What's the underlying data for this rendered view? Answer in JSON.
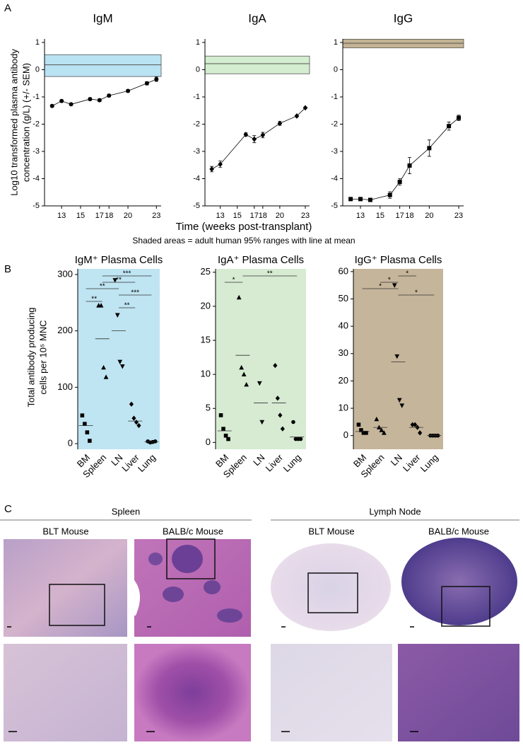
{
  "panel_labels": [
    "A",
    "B",
    "C"
  ],
  "chart_data": [
    {
      "type": "line",
      "title": "IgM",
      "marker": "circle",
      "color": "#000000",
      "ylabel": [
        "Log10 transformed plasma antibody",
        "concentration (g/L) (+/- SEM)"
      ],
      "x": [
        12,
        13,
        14,
        16,
        17,
        18,
        20,
        22,
        23
      ],
      "values": [
        -1.33,
        -1.15,
        -1.27,
        -1.08,
        -1.12,
        -0.95,
        -0.78,
        -0.5,
        -0.35
      ],
      "errors": [
        0.04,
        0.04,
        0.04,
        0.05,
        0.05,
        0.05,
        0.05,
        0.06,
        0.08
      ],
      "band": {
        "low": -0.25,
        "mean": 0.18,
        "high": 0.55,
        "color": "#b9e2f2"
      },
      "xlim": [
        11.2,
        23.5
      ],
      "xticks": [
        13,
        15,
        17,
        18,
        20,
        23
      ],
      "ylim": [
        -5,
        1.13
      ],
      "yticks": [
        -5,
        -4,
        -3,
        -2,
        -1,
        0,
        1
      ]
    },
    {
      "type": "line",
      "title": "IgA",
      "marker": "diamond",
      "color": "#000000",
      "xlabel": "Time (weeks post-transplant)",
      "note": "Shaded areas = adult human 95% ranges with line at mean",
      "x": [
        12,
        13,
        16,
        17,
        18,
        20,
        22,
        23
      ],
      "values": [
        -3.65,
        -3.47,
        -2.38,
        -2.55,
        -2.4,
        -1.97,
        -1.7,
        -1.4
      ],
      "errors": [
        0.1,
        0.12,
        0.06,
        0.13,
        0.1,
        0.07,
        0.03,
        0.03
      ],
      "band": {
        "low": -0.15,
        "mean": 0.22,
        "high": 0.5,
        "color": "#d4ecd0"
      },
      "xlim": [
        11.2,
        23.5
      ],
      "xticks": [
        13,
        15,
        17,
        18,
        20,
        23
      ],
      "ylim": [
        -5,
        1.13
      ],
      "yticks": [
        -5,
        -4,
        -3,
        -2,
        -1,
        0,
        1
      ]
    },
    {
      "type": "line",
      "title": "IgG",
      "marker": "square",
      "color": "#000000",
      "x": [
        12,
        13,
        14,
        16,
        17,
        18,
        20,
        22,
        23
      ],
      "values": [
        -4.75,
        -4.75,
        -4.78,
        -4.6,
        -4.12,
        -3.52,
        -2.88,
        -2.07,
        -1.77
      ],
      "errors": [
        0.05,
        0.05,
        0.05,
        0.12,
        0.12,
        0.3,
        0.3,
        0.15,
        0.1
      ],
      "band": {
        "low": 0.8,
        "mean": 0.97,
        "high": 1.12,
        "color": "#c4b394"
      },
      "xlim": [
        11.2,
        23.5
      ],
      "xticks": [
        13,
        15,
        17,
        18,
        20,
        23
      ],
      "ylim": [
        -5,
        1.13
      ],
      "yticks": [
        -5,
        -4,
        -3,
        -2,
        -1,
        0,
        1
      ]
    },
    {
      "type": "strip",
      "title": "IgM⁺ Plasma Cells",
      "background": "#bfe4f2",
      "ylabel": [
        "Total antibody producing",
        "cells per 10⁵ MNC"
      ],
      "categories": [
        "BM",
        "Spleen",
        "LN",
        "Liver",
        "Lung"
      ],
      "groups": [
        {
          "marker": "square",
          "values": [
            50,
            35,
            20,
            5
          ],
          "median": 32
        },
        {
          "marker": "triangle-up",
          "values": [
            245,
            245,
            135,
            118
          ],
          "median": 186
        },
        {
          "marker": "triangle-down",
          "values": [
            290,
            228,
            145,
            137
          ],
          "median": 200
        },
        {
          "marker": "diamond",
          "values": [
            70,
            45,
            38,
            32
          ],
          "median": 40
        },
        {
          "marker": "circle",
          "values": [
            4,
            2,
            3,
            4
          ],
          "median": 3
        }
      ],
      "brackets": [
        {
          "pair": [
            1,
            4
          ],
          "label": "***"
        },
        {
          "pair": [
            1,
            3
          ],
          "label": "**"
        },
        {
          "pair": [
            0,
            2
          ],
          "label": "**"
        },
        {
          "pair": [
            2,
            4
          ],
          "label": "***"
        },
        {
          "pair": [
            0,
            1
          ],
          "label": "**"
        },
        {
          "pair": [
            2,
            3
          ],
          "label": "**"
        }
      ],
      "ylim": [
        -10,
        310
      ],
      "yticks": [
        0,
        100,
        200,
        300
      ]
    },
    {
      "type": "strip",
      "title": "IgA⁺ Plasma Cells",
      "background": "#d6ebd2",
      "categories": [
        "BM",
        "Spleen",
        "LN",
        "Liver",
        "Lung"
      ],
      "groups": [
        {
          "marker": "square",
          "values": [
            4,
            2,
            1,
            0.5
          ],
          "median": 1.7
        },
        {
          "marker": "triangle-up",
          "values": [
            21.3,
            11,
            10,
            8.5
          ],
          "median": 12.8
        },
        {
          "marker": "triangle-down",
          "values": [
            8.7,
            3
          ],
          "median": 5.8
        },
        {
          "marker": "diamond",
          "values": [
            11.3,
            6.5,
            4,
            2
          ],
          "median": 5.8
        },
        {
          "marker": "circle",
          "values": [
            3,
            0.5,
            0.5,
            0.5
          ],
          "median": 0.8
        }
      ],
      "brackets": [
        {
          "pair": [
            1,
            4
          ],
          "label": "**"
        },
        {
          "pair": [
            0,
            1
          ],
          "label": "*"
        }
      ],
      "ylim": [
        -1,
        25.5
      ],
      "yticks": [
        0,
        5,
        10,
        15,
        20,
        25
      ]
    },
    {
      "type": "strip",
      "title": "IgG⁺ Plasma Cells",
      "background": "#c5b59a",
      "categories": [
        "BM",
        "Spleen",
        "LN",
        "Liver",
        "Lung"
      ],
      "groups": [
        {
          "marker": "square",
          "values": [
            4,
            2,
            1,
            1
          ],
          "median": 1.5
        },
        {
          "marker": "triangle-up",
          "values": [
            6,
            3,
            2,
            1
          ],
          "median": 3
        },
        {
          "marker": "triangle-down",
          "values": [
            55,
            29,
            13,
            11
          ],
          "median": 27
        },
        {
          "marker": "diamond",
          "values": [
            4,
            4,
            3,
            1
          ],
          "median": 3
        },
        {
          "marker": "circle",
          "values": [
            0,
            0,
            0,
            0
          ],
          "median": 0
        }
      ],
      "brackets": [
        {
          "pair": [
            2,
            3
          ],
          "label": "*"
        },
        {
          "pair": [
            1,
            2
          ],
          "label": "*"
        },
        {
          "pair": [
            0,
            2
          ],
          "label": "*"
        },
        {
          "pair": [
            2,
            4
          ],
          "label": "*"
        }
      ],
      "ylim": [
        -5,
        61
      ],
      "yticks": [
        0,
        10,
        20,
        30,
        40,
        50,
        60
      ]
    }
  ],
  "histology": {
    "groups": [
      {
        "title": "Spleen",
        "columns": [
          "BLT Mouse",
          "BALB/c Mouse"
        ]
      },
      {
        "title": "Lymph Node",
        "columns": [
          "BLT Mouse",
          "BALB/c Mouse"
        ]
      }
    ]
  }
}
